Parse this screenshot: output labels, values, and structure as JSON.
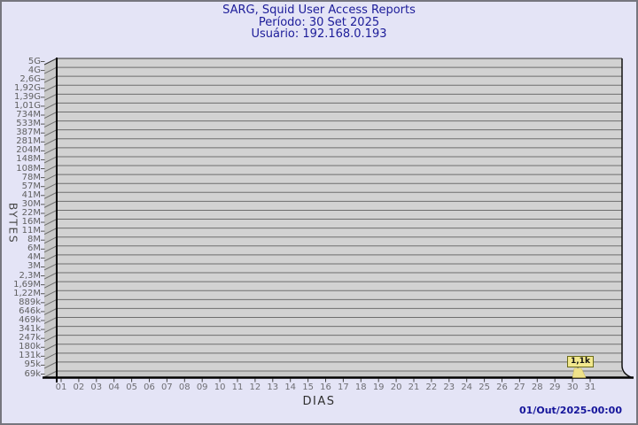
{
  "header": {
    "title": "SARG, Squid User Access Reports",
    "period_label": "Período: 30 Set 2025",
    "user_label": "Usuário: 192.168.0.193"
  },
  "footer": {
    "timestamp": "01/Out/2025-00:00"
  },
  "chart_data": {
    "type": "bar",
    "log_scale": true,
    "title": "SARG, Squid User Access Reports",
    "subtitle": [
      "Período: 30 Set 2025",
      "Usuário: 192.168.0.193"
    ],
    "xlabel": "DIAS",
    "ylabel": "BYTES",
    "x_ticks": [
      "01",
      "02",
      "03",
      "04",
      "05",
      "06",
      "07",
      "08",
      "09",
      "10",
      "11",
      "12",
      "13",
      "14",
      "15",
      "16",
      "17",
      "18",
      "19",
      "20",
      "21",
      "22",
      "23",
      "24",
      "25",
      "26",
      "27",
      "28",
      "29",
      "30",
      "31"
    ],
    "y_ticks": [
      "5G",
      "4G",
      "2,6G",
      "1,92G",
      "1,39G",
      "1,01G",
      "734M",
      "533M",
      "387M",
      "281M",
      "204M",
      "148M",
      "108M",
      "78M",
      "57M",
      "41M",
      "30M",
      "22M",
      "16M",
      "11M",
      "8M",
      "6M",
      "4M",
      "3M",
      "2,3M",
      "1,69M",
      "1,22M",
      "889k",
      "646k",
      "469k",
      "341k",
      "247k",
      "180k",
      "131k",
      "95k",
      "69k"
    ],
    "y_range": [
      "69k",
      "5G"
    ],
    "points": [
      {
        "day": "30",
        "value_bytes": 1100,
        "label": "1,1k"
      }
    ],
    "annotation": {
      "day": "30",
      "label": "1,1k"
    },
    "legend": null,
    "grid": true,
    "colors": {
      "background": "#e4e4f6",
      "plot_fill": "#d2d2d2",
      "wall_fill": "#c8c8c8",
      "gridline": "#6e6e6e",
      "axis": "#000000",
      "title_text": "#1c1c99",
      "tick_text": "#5f5f5f",
      "callout_fill": "#f2e88e",
      "callout_border": "#6b6b1a",
      "timestamp_text": "#15159b"
    }
  }
}
